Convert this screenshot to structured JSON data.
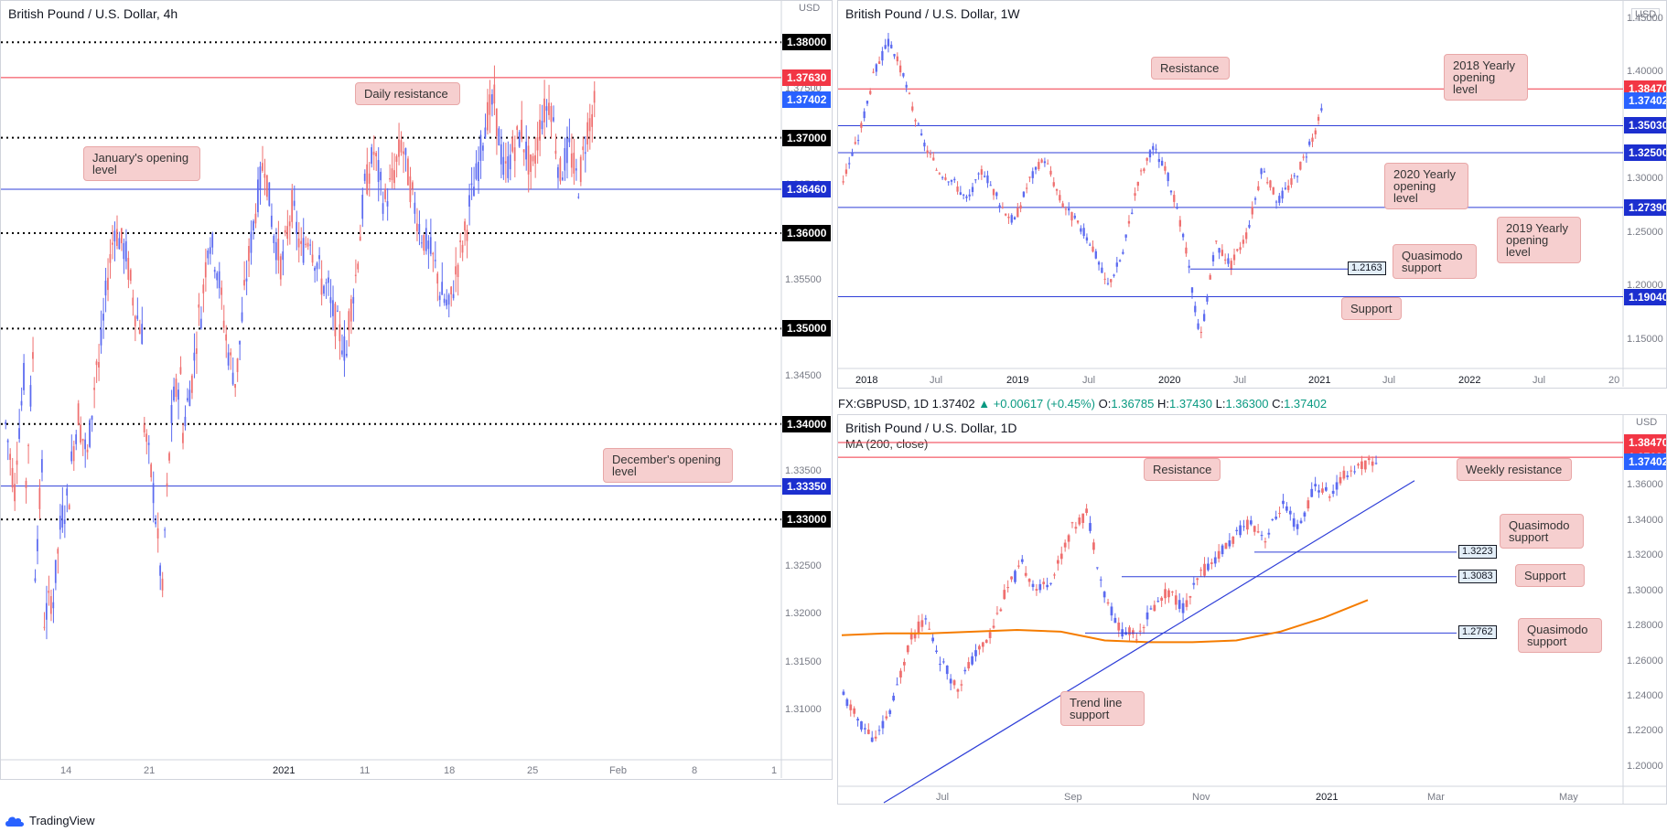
{
  "footer": {
    "brand": "TradingView"
  },
  "symbar": {
    "symbol": "FX:GBPUSD, 1D",
    "price": "1.37402",
    "change": "▲ +0.00617 (+0.45%)",
    "o_label": "O:",
    "o": "1.36785",
    "h_label": "H:",
    "h": "1.37430",
    "l_label": "L:",
    "l": "1.36300",
    "c_label": "C:",
    "c": "1.37402"
  },
  "colors": {
    "up": "#5b6af0",
    "down": "#ef6f6f",
    "ma": "#f57c00",
    "support": "#2f3fd8",
    "resistance": "#f23645",
    "callout": "#f6cfcf"
  },
  "chart_data": [
    {
      "id": "h4",
      "type": "candlestick",
      "title": "British Pound / U.S. Dollar, 4h",
      "unit": "USD",
      "ylim": [
        1.305,
        1.383
      ],
      "y_ticks": [
        "1.31000",
        "1.31500",
        "1.32000",
        "1.32500",
        "1.33000",
        "1.33500",
        "1.34000",
        "1.34500",
        "1.35000",
        "1.35500",
        "1.36000",
        "1.36500",
        "1.37000",
        "1.37500",
        "1.38000"
      ],
      "x_ticks": [
        "14",
        "21",
        "2021",
        "11",
        "18",
        "25",
        "Feb",
        "8",
        "1"
      ],
      "price_path": [
        [
          1.34,
          1.333
        ],
        [
          1.335,
          1.345
        ],
        [
          1.33,
          1.348
        ],
        [
          1.322,
          1.336
        ],
        [
          1.319,
          1.322
        ],
        [
          1.32,
          1.33
        ],
        [
          1.33,
          1.333
        ],
        [
          1.335,
          1.342
        ],
        [
          1.34,
          1.336
        ],
        [
          1.338,
          1.348
        ],
        [
          1.345,
          1.355
        ],
        [
          1.355,
          1.362
        ],
        [
          1.36,
          1.358
        ],
        [
          1.358,
          1.352
        ],
        [
          1.352,
          1.349
        ],
        [
          1.34,
          1.333
        ],
        [
          1.333,
          1.322
        ],
        [
          1.325,
          1.341
        ],
        [
          1.342,
          1.345
        ],
        [
          1.338,
          1.344
        ],
        [
          1.343,
          1.352
        ],
        [
          1.35,
          1.36
        ],
        [
          1.36,
          1.356
        ],
        [
          1.356,
          1.348
        ],
        [
          1.348,
          1.344
        ],
        [
          1.345,
          1.355
        ],
        [
          1.355,
          1.362
        ],
        [
          1.362,
          1.368
        ],
        [
          1.368,
          1.36
        ],
        [
          1.36,
          1.356
        ],
        [
          1.357,
          1.363
        ],
        [
          1.363,
          1.358
        ],
        [
          1.358,
          1.36
        ],
        [
          1.359,
          1.356
        ],
        [
          1.355,
          1.354
        ],
        [
          1.353,
          1.35
        ],
        [
          1.35,
          1.347
        ],
        [
          1.35,
          1.356
        ],
        [
          1.356,
          1.366
        ],
        [
          1.365,
          1.369
        ],
        [
          1.368,
          1.363
        ],
        [
          1.363,
          1.366
        ],
        [
          1.366,
          1.37
        ],
        [
          1.369,
          1.364
        ],
        [
          1.364,
          1.36
        ],
        [
          1.36,
          1.358
        ],
        [
          1.358,
          1.355
        ],
        [
          1.354,
          1.352
        ],
        [
          1.352,
          1.357
        ],
        [
          1.357,
          1.361
        ],
        [
          1.362,
          1.366
        ],
        [
          1.366,
          1.372
        ],
        [
          1.372,
          1.374
        ],
        [
          1.373,
          1.366
        ],
        [
          1.366,
          1.369
        ],
        [
          1.369,
          1.371
        ],
        [
          1.37,
          1.366
        ],
        [
          1.366,
          1.372
        ],
        [
          1.372,
          1.374
        ],
        [
          1.374,
          1.366
        ],
        [
          1.366,
          1.369
        ],
        [
          1.369,
          1.365
        ],
        [
          1.365,
          1.371
        ],
        [
          1.371,
          1.374
        ]
      ],
      "levels": [
        {
          "value": "1.38000",
          "style": "dotted",
          "color": "black"
        },
        {
          "value": "1.37630",
          "style": "solid",
          "color": "red"
        },
        {
          "value": "1.37402",
          "style": "none",
          "color": "blue"
        },
        {
          "value": "1.37000",
          "style": "dotted",
          "color": "black"
        },
        {
          "value": "1.36460",
          "style": "solid",
          "color": "navy"
        },
        {
          "value": "1.36000",
          "style": "dotted",
          "color": "black"
        },
        {
          "value": "1.35000",
          "style": "dotted",
          "color": "black"
        },
        {
          "value": "1.34000",
          "style": "dotted",
          "color": "black"
        },
        {
          "value": "1.33350",
          "style": "solid",
          "color": "navy"
        },
        {
          "value": "1.33000",
          "style": "dotted",
          "color": "black"
        }
      ],
      "annotations": [
        {
          "lines": [
            "Daily resistance"
          ]
        },
        {
          "lines": [
            "January's opening",
            "level"
          ]
        },
        {
          "lines": [
            "December's opening",
            "level"
          ]
        }
      ]
    },
    {
      "id": "w1",
      "type": "candlestick",
      "title": "British Pound / U.S. Dollar, 1W",
      "unit": "USD",
      "ylim": [
        1.125,
        1.455
      ],
      "y_ticks": [
        "1.15000",
        "1.20000",
        "1.25000",
        "1.30000",
        "1.35000",
        "1.40000",
        "1.45000"
      ],
      "x_ticks": [
        "2018",
        "Jul",
        "2019",
        "Jul",
        "2020",
        "Jul",
        "2021",
        "Jul",
        "2022",
        "Jul",
        "20"
      ],
      "price_path": [
        [
          1.3,
          1.34
        ],
        [
          1.34,
          1.4
        ],
        [
          1.4,
          1.43
        ],
        [
          1.43,
          1.39
        ],
        [
          1.39,
          1.34
        ],
        [
          1.34,
          1.31
        ],
        [
          1.31,
          1.3
        ],
        [
          1.3,
          1.28
        ],
        [
          1.28,
          1.31
        ],
        [
          1.31,
          1.28
        ],
        [
          1.28,
          1.26
        ],
        [
          1.26,
          1.3
        ],
        [
          1.3,
          1.32
        ],
        [
          1.32,
          1.28
        ],
        [
          1.28,
          1.26
        ],
        [
          1.26,
          1.24
        ],
        [
          1.24,
          1.2
        ],
        [
          1.2,
          1.23
        ],
        [
          1.23,
          1.3
        ],
        [
          1.3,
          1.33
        ],
        [
          1.33,
          1.3
        ],
        [
          1.3,
          1.24
        ],
        [
          1.24,
          1.15
        ],
        [
          1.15,
          1.24
        ],
        [
          1.24,
          1.22
        ],
        [
          1.22,
          1.25
        ],
        [
          1.25,
          1.31
        ],
        [
          1.31,
          1.28
        ],
        [
          1.28,
          1.3
        ],
        [
          1.3,
          1.33
        ],
        [
          1.33,
          1.37
        ]
      ],
      "levels": [
        {
          "value": "1.38470",
          "style": "solid",
          "color": "red"
        },
        {
          "value": "1.37402",
          "style": "none",
          "color": "blue"
        },
        {
          "value": "1.35030",
          "style": "solid",
          "color": "navy"
        },
        {
          "value": "1.32500",
          "style": "solid",
          "color": "navy"
        },
        {
          "value": "1.27390",
          "style": "solid",
          "color": "navy"
        },
        {
          "value": "1.19040",
          "style": "solid",
          "color": "navy"
        }
      ],
      "boxed": [
        {
          "value": "1.2163"
        }
      ],
      "annotations": [
        {
          "lines": [
            "Resistance"
          ]
        },
        {
          "lines": [
            "2018 Yearly",
            "opening",
            "level"
          ]
        },
        {
          "lines": [
            "2020 Yearly",
            "opening",
            "level"
          ]
        },
        {
          "lines": [
            "2019 Yearly",
            "opening",
            "level"
          ]
        },
        {
          "lines": [
            "Quasimodo",
            "support"
          ]
        },
        {
          "lines": [
            "Support"
          ]
        }
      ]
    },
    {
      "id": "d1",
      "type": "candlestick",
      "title": "British Pound / U.S. Dollar, 1D",
      "subtitle": "MA (200, close)",
      "unit": "USD",
      "ylim": [
        1.19,
        1.392
      ],
      "y_ticks": [
        "1.20000",
        "1.22000",
        "1.24000",
        "1.26000",
        "1.28000",
        "1.30000",
        "1.32000",
        "1.34000",
        "1.36000"
      ],
      "x_ticks": [
        "Jul",
        "Sep",
        "Nov",
        "2021",
        "Mar",
        "May"
      ],
      "price_path": [
        [
          1.24,
          1.225
        ],
        [
          1.225,
          1.215
        ],
        [
          1.215,
          1.235
        ],
        [
          1.235,
          1.27
        ],
        [
          1.27,
          1.285
        ],
        [
          1.285,
          1.26
        ],
        [
          1.26,
          1.245
        ],
        [
          1.245,
          1.262
        ],
        [
          1.262,
          1.275
        ],
        [
          1.275,
          1.3
        ],
        [
          1.3,
          1.315
        ],
        [
          1.315,
          1.3
        ],
        [
          1.3,
          1.31
        ],
        [
          1.31,
          1.335
        ],
        [
          1.335,
          1.345
        ],
        [
          1.345,
          1.3
        ],
        [
          1.3,
          1.278
        ],
        [
          1.278,
          1.275
        ],
        [
          1.275,
          1.29
        ],
        [
          1.29,
          1.3
        ],
        [
          1.3,
          1.29
        ],
        [
          1.29,
          1.31
        ],
        [
          1.31,
          1.32
        ],
        [
          1.32,
          1.33
        ],
        [
          1.33,
          1.34
        ],
        [
          1.34,
          1.33
        ],
        [
          1.33,
          1.35
        ],
        [
          1.35,
          1.335
        ],
        [
          1.335,
          1.36
        ],
        [
          1.36,
          1.355
        ],
        [
          1.355,
          1.368
        ],
        [
          1.368,
          1.372
        ],
        [
          1.372,
          1.374
        ]
      ],
      "ma_200": [
        1.275,
        1.276,
        1.276,
        1.277,
        1.278,
        1.277,
        1.272,
        1.271,
        1.271,
        1.272,
        1.277,
        1.285,
        1.295
      ],
      "trendline": [
        [
          1.19,
          0.0
        ],
        [
          1.363,
          1.0
        ]
      ],
      "levels": [
        {
          "value": "1.38470",
          "style": "solid",
          "color": "red"
        },
        {
          "value": "1.37630",
          "style": "solid",
          "color": "red"
        },
        {
          "value": "1.37402",
          "style": "none",
          "color": "blue"
        }
      ],
      "boxed": [
        {
          "value": "1.3223"
        },
        {
          "value": "1.3083"
        },
        {
          "value": "1.2762"
        }
      ],
      "annotations": [
        {
          "lines": [
            "Resistance"
          ]
        },
        {
          "lines": [
            "Weekly resistance"
          ]
        },
        {
          "lines": [
            "Quasimodo",
            "support"
          ]
        },
        {
          "lines": [
            "Support"
          ]
        },
        {
          "lines": [
            "Quasimodo",
            "support"
          ]
        },
        {
          "lines": [
            "Trend line",
            "support"
          ]
        }
      ]
    }
  ]
}
